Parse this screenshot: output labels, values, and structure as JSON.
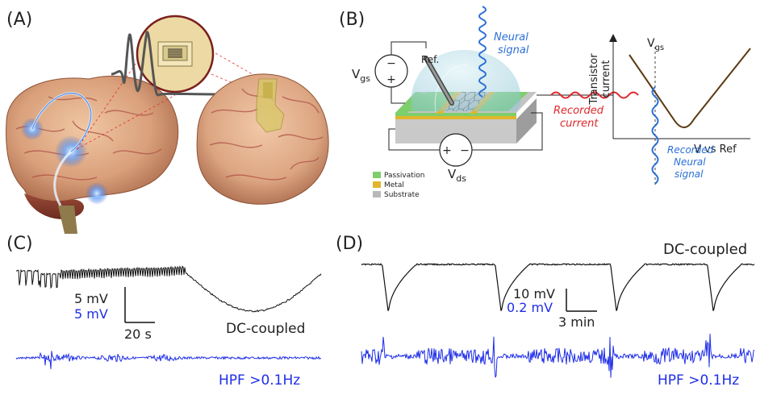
{
  "panels": {
    "a": {
      "label": "(A)"
    },
    "b": {
      "label": "(B)",
      "neural_signal": "Neural signal",
      "neural_signal_line1": "Neural",
      "neural_signal_line2": "signal",
      "ref": "Ref.",
      "vgs_main": "V",
      "vgs_sub": "gs",
      "vds_main": "V",
      "vds_sub": "ds",
      "recorded_current_line1": "Recorded",
      "recorded_current_line2": "current",
      "transistor_current_line1": "Transistor",
      "transistor_current_line2": "current",
      "x_axis": "V vs Ref",
      "recorded_neural_line1": "Recorded",
      "recorded_neural_line2": "Neural",
      "recorded_neural_line3": "signal",
      "legend": [
        {
          "label": "Passivation",
          "color": "#7dcf6b"
        },
        {
          "label": "Metal",
          "color": "#e2b52c"
        },
        {
          "label": "Substrate",
          "color": "#b9b9b9"
        }
      ]
    },
    "c": {
      "label": "(C)",
      "scale_mv_black": "5 mV",
      "scale_mv_blue": "5 mV",
      "scale_time": "20 s",
      "dc_label": "DC-coupled",
      "hpf_label": "HPF >0.1Hz"
    },
    "d": {
      "label": "(D)",
      "dc_label": "DC-coupled",
      "scale_mv_black": "10 mV",
      "scale_mv_blue": "0.2 mV",
      "scale_time": "3 min",
      "hpf_label": "HPF >0.1Hz"
    }
  },
  "colors": {
    "blue_trace": "#1f2ee8",
    "black_trace": "#111111",
    "red_signal": "#e0262b",
    "neural_blue": "#2b6fd6",
    "curve_brown": "#5b3a12"
  }
}
